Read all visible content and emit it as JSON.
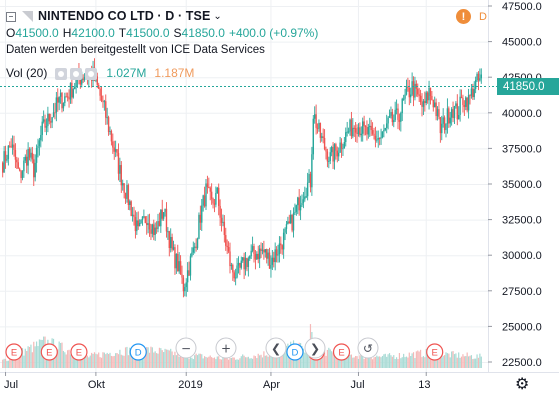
{
  "colors": {
    "up": "#26a69a",
    "down": "#ef5350",
    "vol_up": "#a8dbd5",
    "vol_down": "#f5b8b7",
    "grid": "#eef0f3",
    "marker_e": "#ef5350",
    "marker_d": "#2196f3"
  },
  "header": {
    "symbol": "NINTENDO CO LTD · D · TSE",
    "ohlc": {
      "open_label": "O",
      "open": "41500.0",
      "high_label": "H",
      "high": "42100.0",
      "low_label": "T",
      "low": "41500.0",
      "close_label": "S",
      "close": "41850.0",
      "change": "+400.0 (+0.97%)"
    },
    "provider": "Daten werden bereitgestellt von ICE Data Services",
    "volume": {
      "label": "Vol (20)",
      "value": "1.027M",
      "ma": "1.187M"
    }
  },
  "badges": {
    "info": "!",
    "interval_flag": "D"
  },
  "last_price_label": "41850.0",
  "event_markers": {
    "earnings_label": "E",
    "dividend_label": "D"
  },
  "toolbar": {
    "zoom_out": "−",
    "zoom_in": "+",
    "scroll_left": "❮",
    "scroll_right": "❯",
    "reset": "↺"
  },
  "chart_data": {
    "type": "candlestick",
    "title": "NINTENDO CO LTD · D · TSE",
    "ylim": [
      22500,
      47500
    ],
    "y_ticks": [
      22500,
      25000,
      27500,
      30000,
      32500,
      35000,
      37500,
      40000,
      42500,
      45000,
      47500
    ],
    "y_tick_labels": [
      "22500.0",
      "25000.0",
      "27500.0",
      "30000.0",
      "32500.0",
      "35000.0",
      "37500.0",
      "40000.0",
      "42500.0",
      "45000.0",
      "47500.0"
    ],
    "x_ticks": [
      "Jul",
      "Okt",
      "2019",
      "Apr",
      "Jul",
      "13"
    ],
    "x_tick_index": [
      2,
      66,
      130,
      190,
      252,
      300
    ],
    "price_path": [
      [
        0,
        36500
      ],
      [
        6,
        37800
      ],
      [
        12,
        35500
      ],
      [
        18,
        37200
      ],
      [
        22,
        36000
      ],
      [
        28,
        38800
      ],
      [
        34,
        39800
      ],
      [
        40,
        40800
      ],
      [
        46,
        41200
      ],
      [
        52,
        42200
      ],
      [
        58,
        42700
      ],
      [
        64,
        42600
      ],
      [
        68,
        41500
      ],
      [
        72,
        40200
      ],
      [
        78,
        37800
      ],
      [
        84,
        35500
      ],
      [
        90,
        33600
      ],
      [
        96,
        31500
      ],
      [
        102,
        32800
      ],
      [
        108,
        31600
      ],
      [
        114,
        33200
      ],
      [
        120,
        30200
      ],
      [
        124,
        29300
      ],
      [
        128,
        27800
      ],
      [
        132,
        29200
      ],
      [
        136,
        30600
      ],
      [
        140,
        32800
      ],
      [
        144,
        34500
      ],
      [
        148,
        33600
      ],
      [
        152,
        34200
      ],
      [
        156,
        31800
      ],
      [
        162,
        29000
      ],
      [
        166,
        28600
      ],
      [
        172,
        29600
      ],
      [
        178,
        30100
      ],
      [
        184,
        30300
      ],
      [
        190,
        29600
      ],
      [
        196,
        30600
      ],
      [
        202,
        31800
      ],
      [
        206,
        32600
      ],
      [
        210,
        33800
      ],
      [
        214,
        34700
      ],
      [
        218,
        35200
      ],
      [
        220,
        40000
      ],
      [
        224,
        38600
      ],
      [
        228,
        37600
      ],
      [
        232,
        36800
      ],
      [
        238,
        37600
      ],
      [
        244,
        38600
      ],
      [
        250,
        39300
      ],
      [
        256,
        38700
      ],
      [
        262,
        38300
      ],
      [
        268,
        38200
      ],
      [
        274,
        39300
      ],
      [
        280,
        39700
      ],
      [
        286,
        41200
      ],
      [
        290,
        41800
      ],
      [
        294,
        41100
      ],
      [
        298,
        40300
      ],
      [
        302,
        41500
      ],
      [
        306,
        40600
      ],
      [
        310,
        38800
      ],
      [
        314,
        39500
      ],
      [
        318,
        40400
      ],
      [
        322,
        40000
      ],
      [
        326,
        41000
      ],
      [
        330,
        40800
      ],
      [
        334,
        41900
      ],
      [
        338,
        42300
      ]
    ],
    "volume_levels": [
      [
        0,
        0.2
      ],
      [
        30,
        0.7
      ],
      [
        60,
        0.3
      ],
      [
        82,
        0.45
      ],
      [
        100,
        0.5
      ],
      [
        130,
        0.35
      ],
      [
        160,
        0.25
      ],
      [
        190,
        0.4
      ],
      [
        208,
        0.6
      ],
      [
        216,
        0.45
      ],
      [
        218,
        1.0
      ],
      [
        222,
        0.5
      ],
      [
        240,
        0.35
      ],
      [
        270,
        0.3
      ],
      [
        300,
        0.4
      ],
      [
        320,
        0.35
      ],
      [
        338,
        0.3
      ]
    ],
    "earnings_at": [
      8,
      33,
      54,
      222,
      240,
      306
    ],
    "dividends_at": [
      96,
      207
    ],
    "last_price": 41850.0
  }
}
